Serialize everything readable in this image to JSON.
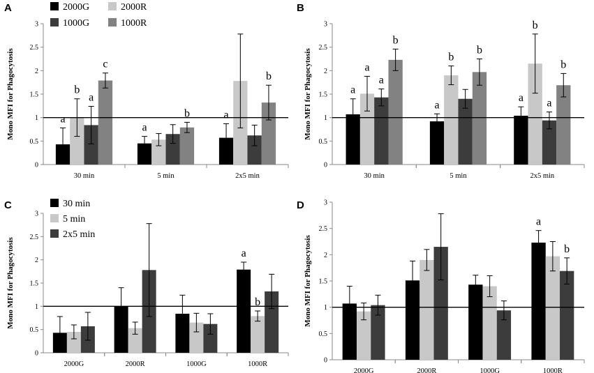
{
  "colors": {
    "series_1": "#000000",
    "series_2": "#c8c8c8",
    "series_3": "#3c3c3c",
    "series_4": "#828282"
  },
  "chart_data": [
    {
      "panel": "A",
      "type": "bar",
      "ylabel": "Mono MFI for Phagocytosis",
      "ylim": [
        0,
        3
      ],
      "yticks": [
        "0",
        "0.5",
        "1",
        "1.5",
        "2",
        "2.5",
        "3"
      ],
      "reference_line": 1,
      "categories": [
        "30 min",
        "5 min",
        "2x5 min"
      ],
      "legend_position": "top-left",
      "series": [
        {
          "name": "2000G",
          "color": "#000000",
          "values": [
            0.43,
            0.45,
            0.57
          ],
          "errors": [
            0.35,
            0.15,
            0.3
          ],
          "labels": [
            "a",
            "a",
            "a"
          ]
        },
        {
          "name": "2000R",
          "color": "#c8c8c8",
          "values": [
            1.0,
            0.53,
            1.78
          ],
          "errors": [
            0.4,
            0.13,
            1.0
          ],
          "labels": [
            "b",
            "",
            ""
          ]
        },
        {
          "name": "1000G",
          "color": "#3c3c3c",
          "values": [
            0.84,
            0.65,
            0.62
          ],
          "errors": [
            0.4,
            0.2,
            0.22
          ],
          "labels": [
            "a",
            "",
            ""
          ]
        },
        {
          "name": "1000R",
          "color": "#828282",
          "values": [
            1.79,
            0.79,
            1.32
          ],
          "errors": [
            0.16,
            0.11,
            0.37
          ],
          "labels": [
            "c",
            "b",
            "b"
          ]
        }
      ]
    },
    {
      "panel": "B",
      "type": "bar",
      "ylabel": "Mono MFI for Phagocytosis",
      "ylim": [
        0,
        3
      ],
      "yticks": [
        "0",
        "0.5",
        "1",
        "1.5",
        "2",
        "2.5",
        "3"
      ],
      "reference_line": 1,
      "categories": [
        "30 min",
        "5 min",
        "2x5 min"
      ],
      "series": [
        {
          "name": "2000G",
          "color": "#000000",
          "values": [
            1.07,
            0.92,
            1.04
          ],
          "errors": [
            0.33,
            0.16,
            0.19
          ],
          "labels": [
            "a",
            "a",
            "a"
          ]
        },
        {
          "name": "2000R",
          "color": "#c8c8c8",
          "values": [
            1.51,
            1.9,
            2.15
          ],
          "errors": [
            0.37,
            0.2,
            0.63
          ],
          "labels": [
            "a",
            "b",
            "b"
          ]
        },
        {
          "name": "1000G",
          "color": "#3c3c3c",
          "values": [
            1.43,
            1.4,
            0.94
          ],
          "errors": [
            0.18,
            0.2,
            0.18
          ],
          "labels": [
            "a",
            "",
            "a"
          ]
        },
        {
          "name": "1000R",
          "color": "#828282",
          "values": [
            2.23,
            1.97,
            1.69
          ],
          "errors": [
            0.23,
            0.28,
            0.25
          ],
          "labels": [
            "b",
            "b",
            "b"
          ]
        }
      ]
    },
    {
      "panel": "C",
      "type": "bar",
      "ylabel": "Mono MFI for Phagocytosis",
      "ylim": [
        0,
        3
      ],
      "yticks": [
        "0",
        "0.5",
        "1",
        "1.5",
        "2",
        "2.5",
        "3"
      ],
      "reference_line": 1,
      "categories": [
        "2000G",
        "2000R",
        "1000G",
        "1000R"
      ],
      "legend_position": "top-left",
      "series": [
        {
          "name": "30 min",
          "color": "#000000",
          "values": [
            0.43,
            1.0,
            0.84,
            1.79
          ],
          "errors": [
            0.35,
            0.4,
            0.4,
            0.16
          ],
          "labels": [
            "",
            "",
            "",
            "a"
          ]
        },
        {
          "name": "5 min",
          "color": "#c8c8c8",
          "values": [
            0.45,
            0.53,
            0.65,
            0.79
          ],
          "errors": [
            0.15,
            0.13,
            0.2,
            0.11
          ],
          "labels": [
            "",
            "",
            "",
            "b"
          ]
        },
        {
          "name": "2x5 min",
          "color": "#3c3c3c",
          "values": [
            0.57,
            1.78,
            0.62,
            1.32
          ],
          "errors": [
            0.3,
            1.0,
            0.22,
            0.37
          ],
          "labels": [
            "",
            "",
            "",
            ""
          ]
        }
      ]
    },
    {
      "panel": "D",
      "type": "bar",
      "ylabel": "Mono MFI for Phagocytosis",
      "ylim": [
        0,
        3
      ],
      "yticks": [
        "0",
        "0.5",
        "1",
        "1.5",
        "2",
        "2.5",
        "3"
      ],
      "reference_line": 1,
      "categories": [
        "2000G",
        "2000R",
        "1000G",
        "1000R"
      ],
      "series": [
        {
          "name": "30 min",
          "color": "#000000",
          "values": [
            1.07,
            1.51,
            1.43,
            2.23
          ],
          "errors": [
            0.33,
            0.37,
            0.18,
            0.23
          ],
          "labels": [
            "",
            "",
            "",
            "a"
          ]
        },
        {
          "name": "5 min",
          "color": "#c8c8c8",
          "values": [
            0.92,
            1.9,
            1.4,
            1.97
          ],
          "errors": [
            0.16,
            0.2,
            0.2,
            0.28
          ],
          "labels": [
            "",
            "",
            "",
            ""
          ]
        },
        {
          "name": "2x5 min",
          "color": "#3c3c3c",
          "values": [
            1.04,
            2.15,
            0.94,
            1.69
          ],
          "errors": [
            0.19,
            0.63,
            0.18,
            0.25
          ],
          "labels": [
            "",
            "",
            "",
            "b"
          ]
        }
      ]
    }
  ]
}
